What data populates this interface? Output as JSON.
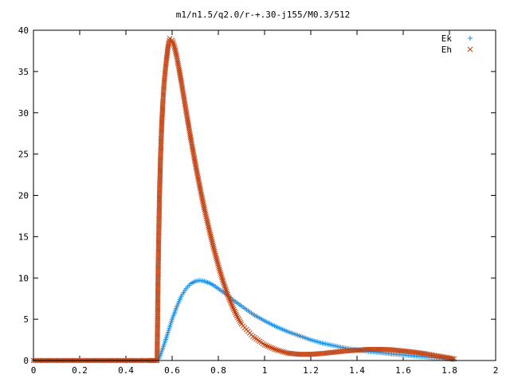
{
  "chart_data": {
    "type": "scatter",
    "title": "m1/n1.5/q2.0/r-+.30-j155/M0.3/512",
    "xlabel": "",
    "ylabel": "",
    "xlim": [
      0,
      2
    ],
    "ylim": [
      0,
      40
    ],
    "x_ticks": [
      "0",
      "0.2",
      "0.4",
      "0.6",
      "0.8",
      "1",
      "1.2",
      "1.4",
      "1.6",
      "1.8",
      "2"
    ],
    "y_ticks": [
      "0",
      "5",
      "10",
      "15",
      "20",
      "25",
      "30",
      "35",
      "40"
    ],
    "grid": false,
    "legend_position": "top-right",
    "series": [
      {
        "name": "Ek",
        "color": "#1f8fe0",
        "marker": "plus",
        "x": [
          0.0,
          0.1,
          0.2,
          0.3,
          0.4,
          0.5,
          0.54,
          0.56,
          0.58,
          0.6,
          0.62,
          0.64,
          0.66,
          0.68,
          0.7,
          0.72,
          0.74,
          0.76,
          0.78,
          0.8,
          0.82,
          0.84,
          0.86,
          0.88,
          0.9,
          0.95,
          1.0,
          1.05,
          1.1,
          1.15,
          1.2,
          1.25,
          1.3,
          1.35,
          1.4,
          1.45,
          1.5,
          1.55,
          1.6,
          1.65,
          1.7,
          1.75,
          1.8,
          1.82
        ],
        "y": [
          0,
          0,
          0,
          0,
          0,
          0,
          0,
          1.5,
          3.2,
          5.0,
          6.5,
          7.8,
          8.7,
          9.3,
          9.6,
          9.7,
          9.6,
          9.4,
          9.1,
          8.7,
          8.3,
          7.9,
          7.4,
          7.0,
          6.6,
          5.6,
          4.8,
          4.1,
          3.5,
          3.0,
          2.5,
          2.1,
          1.8,
          1.5,
          1.3,
          1.1,
          0.95,
          0.8,
          0.68,
          0.55,
          0.42,
          0.3,
          0.18,
          0.1
        ]
      },
      {
        "name": "Eh",
        "color": "#c04010",
        "marker": "cross",
        "x": [
          0.0,
          0.1,
          0.2,
          0.3,
          0.4,
          0.5,
          0.535,
          0.54,
          0.545,
          0.55,
          0.555,
          0.56,
          0.565,
          0.57,
          0.575,
          0.58,
          0.585,
          0.59,
          0.6,
          0.61,
          0.62,
          0.63,
          0.64,
          0.65,
          0.66,
          0.68,
          0.7,
          0.72,
          0.74,
          0.76,
          0.78,
          0.8,
          0.82,
          0.84,
          0.86,
          0.88,
          0.9,
          0.95,
          1.0,
          1.05,
          1.1,
          1.15,
          1.2,
          1.25,
          1.3,
          1.35,
          1.4,
          1.45,
          1.5,
          1.55,
          1.6,
          1.65,
          1.7,
          1.75,
          1.8,
          1.82
        ],
        "y": [
          0,
          0,
          0,
          0,
          0,
          0,
          0,
          11.7,
          19.6,
          24.8,
          28.6,
          31.3,
          33.5,
          35.0,
          36.3,
          37.5,
          38.5,
          39.0,
          38.8,
          38.0,
          36.8,
          35.3,
          33.7,
          32.0,
          30.3,
          27.0,
          23.9,
          21.0,
          18.3,
          15.9,
          13.6,
          11.5,
          9.6,
          8.0,
          6.6,
          5.4,
          4.4,
          2.9,
          1.9,
          1.3,
          0.9,
          0.75,
          0.75,
          0.85,
          1.0,
          1.15,
          1.25,
          1.35,
          1.35,
          1.3,
          1.15,
          1.0,
          0.8,
          0.55,
          0.3,
          0.2
        ]
      }
    ]
  }
}
